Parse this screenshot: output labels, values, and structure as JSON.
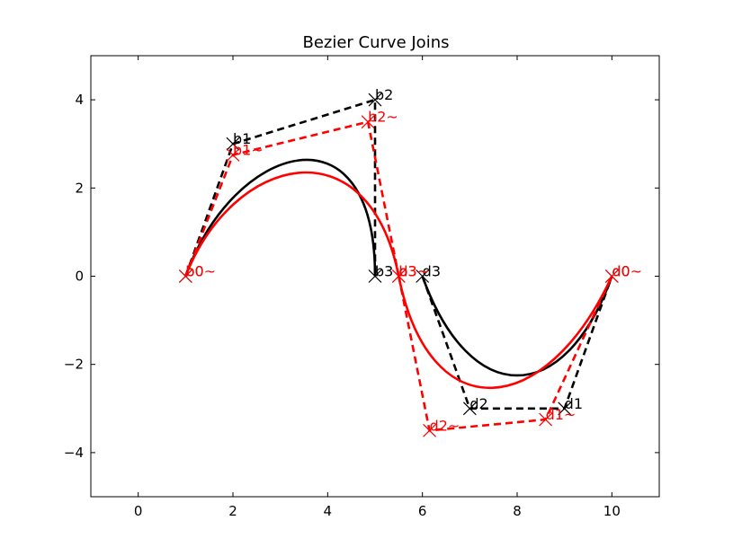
{
  "chart_data": {
    "type": "line",
    "title": "Bezier Curve Joins",
    "xlabel": "",
    "ylabel": "",
    "xlim": [
      -1,
      11
    ],
    "ylim": [
      -5,
      5
    ],
    "xticks": [
      0,
      2,
      4,
      6,
      8,
      10
    ],
    "yticks": [
      -4,
      -2,
      0,
      2,
      4
    ],
    "xtick_labels": [
      "0",
      "2",
      "4",
      "6",
      "8",
      "10"
    ],
    "ytick_labels": [
      "−4",
      "−2",
      "0",
      "2",
      "4"
    ],
    "grid": false,
    "series": [
      {
        "color": "#000000",
        "curves": [
          {
            "control_points": [
              {
                "x": 1,
                "y": 0,
                "label": "b0"
              },
              {
                "x": 2,
                "y": 3,
                "label": "b1"
              },
              {
                "x": 5,
                "y": 4,
                "label": "b2"
              },
              {
                "x": 5,
                "y": 0,
                "label": "b3"
              }
            ]
          },
          {
            "control_points": [
              {
                "x": 6,
                "y": 0,
                "label": "d3"
              },
              {
                "x": 7,
                "y": -3,
                "label": "d2"
              },
              {
                "x": 9,
                "y": -3,
                "label": "d1"
              },
              {
                "x": 10,
                "y": 0,
                "label": "d0"
              }
            ]
          }
        ]
      },
      {
        "color": "#ff0000",
        "curves": [
          {
            "control_points": [
              {
                "x": 1,
                "y": 0,
                "label": "b0~"
              },
              {
                "x": 2,
                "y": 2.75,
                "label": "b1~"
              },
              {
                "x": 4.85,
                "y": 3.5,
                "label": "b2~"
              },
              {
                "x": 5.5,
                "y": 0,
                "label": "b3~"
              }
            ]
          },
          {
            "control_points": [
              {
                "x": 5.5,
                "y": 0,
                "label": "d3~"
              },
              {
                "x": 6.15,
                "y": -3.5,
                "label": "d2~"
              },
              {
                "x": 8.6,
                "y": -3.25,
                "label": "d1~"
              },
              {
                "x": 10,
                "y": 0,
                "label": "d0~"
              }
            ]
          }
        ]
      }
    ]
  }
}
